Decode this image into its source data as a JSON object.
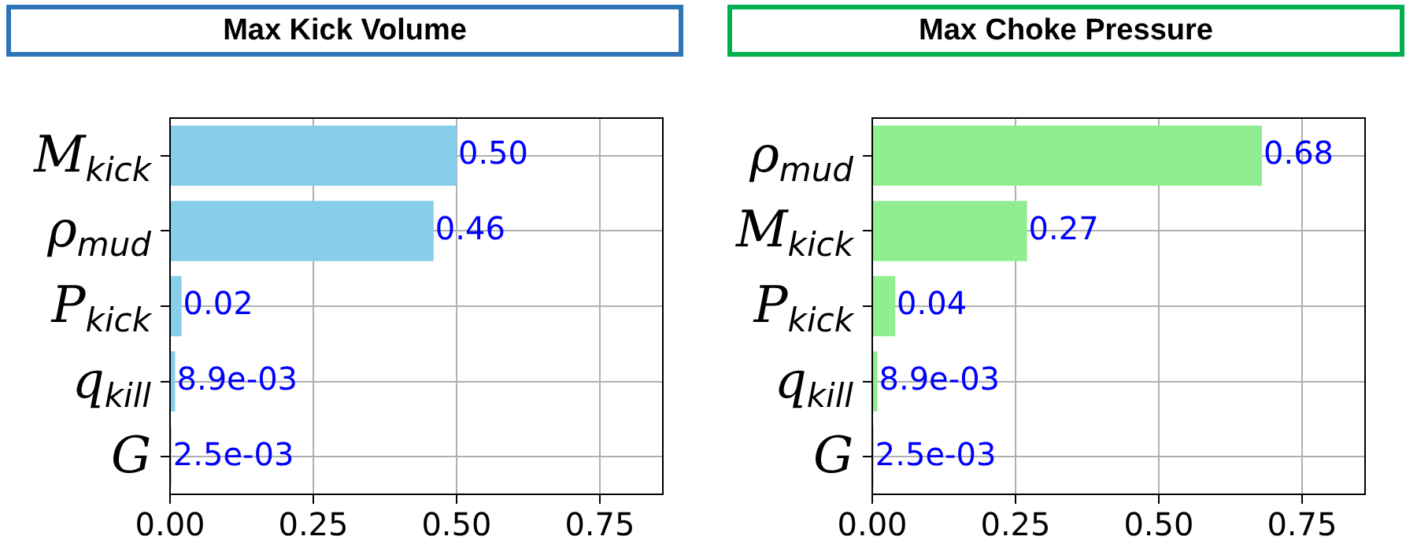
{
  "chart_data": [
    {
      "type": "bar",
      "orientation": "horizontal",
      "title": "Max Kick Volume",
      "categories": [
        "M$_{kick}$",
        "ρ$_{mud}$",
        "P$_{kick}$",
        "q$_{kill}$",
        "G"
      ],
      "values": [
        0.5,
        0.46,
        0.02,
        0.0089,
        0.0025
      ],
      "value_labels": [
        "0.50",
        "0.46",
        "0.02",
        "8.9e-03",
        "2.5e-03"
      ],
      "color": "#87ceeb",
      "xlim": [
        0,
        0.86
      ],
      "xticks": [
        {
          "value": 0,
          "label": "0.00"
        },
        {
          "value": 0.25,
          "label": "0.25"
        },
        {
          "value": 0.5,
          "label": "0.50"
        },
        {
          "value": 0.75,
          "label": "0.75"
        }
      ],
      "grid": true,
      "legend": false
    },
    {
      "type": "bar",
      "orientation": "horizontal",
      "title": "Max Choke Pressure",
      "categories": [
        "ρ$_{mud}$",
        "M$_{kick}$",
        "P$_{kick}$",
        "q$_{kill}$",
        "G"
      ],
      "values": [
        0.68,
        0.27,
        0.04,
        0.0089,
        0.0025
      ],
      "value_labels": [
        "0.68",
        "0.27",
        "0.04",
        "8.9e-03",
        "2.5e-03"
      ],
      "color": "#90ee90",
      "xlim": [
        0,
        0.86
      ],
      "xticks": [
        {
          "value": 0,
          "label": "0.00"
        },
        {
          "value": 0.25,
          "label": "0.25"
        },
        {
          "value": 0.5,
          "label": "0.50"
        },
        {
          "value": 0.75,
          "label": "0.75"
        }
      ],
      "grid": true,
      "legend": false
    }
  ]
}
